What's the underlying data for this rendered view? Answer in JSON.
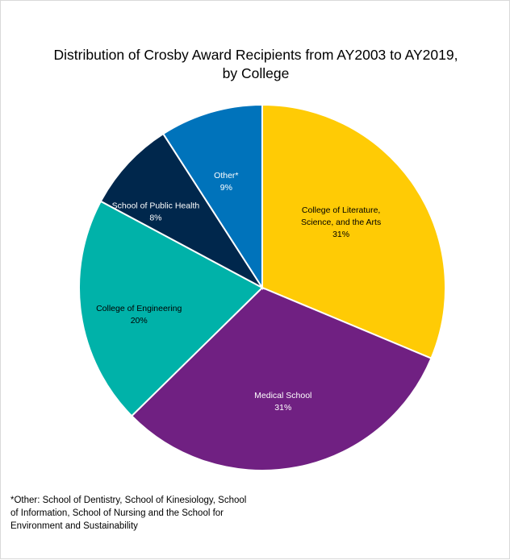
{
  "chart_data": {
    "type": "pie",
    "title_lines": [
      "Distribution of Crosby Award Recipients from AY2003 to AY2019,",
      "by College"
    ],
    "slices": [
      {
        "name_lines": [
          "College of Literature,",
          "Science, and the Arts"
        ],
        "value": 31,
        "label": "31%",
        "color": "#FFCB05",
        "text_color": "#000000"
      },
      {
        "name_lines": [
          "Medical School"
        ],
        "value": 31,
        "label": "31%",
        "color": "#702082",
        "text_color": "#ffffff"
      },
      {
        "name_lines": [
          "College of Engineering"
        ],
        "value": 20,
        "label": "20%",
        "color": "#00B2A9",
        "text_color": "#000000"
      },
      {
        "name_lines": [
          "School of Public Health"
        ],
        "value": 8,
        "label": "8%",
        "color": "#00274C",
        "text_color": "#ffffff"
      },
      {
        "name_lines": [
          "Other*"
        ],
        "value": 9,
        "label": "9%",
        "color": "#0073BB",
        "text_color": "#ffffff"
      }
    ],
    "start": "12 o'clock",
    "direction": "clockwise",
    "legend": "none",
    "slice_border_color": "#ffffff"
  },
  "footnote": "*Other: School of Dentistry, School of Kinesiology, School of Information, School of Nursing and the School for Environment and Sustainability"
}
